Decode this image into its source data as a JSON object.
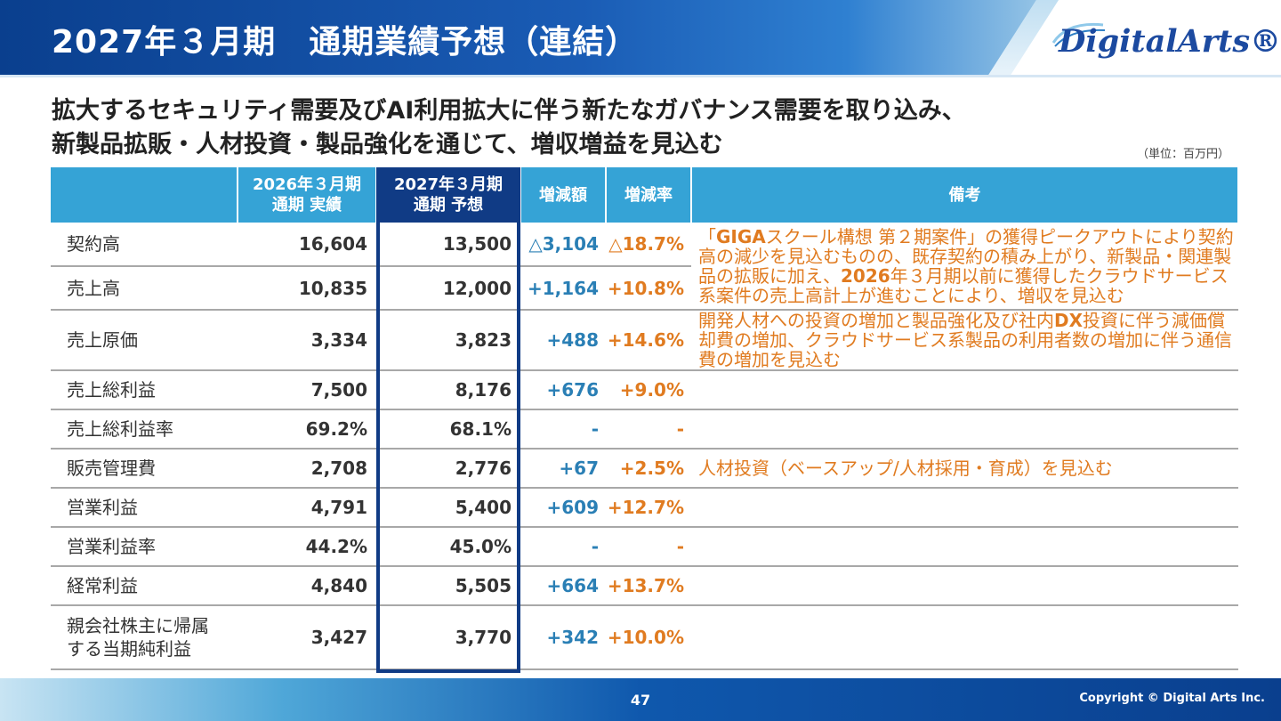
{
  "header": {
    "title": "2027年３月期　通期業績予想（連結）",
    "logo_text": "DigitalArts®"
  },
  "headline": {
    "line1": "拡大するセキュリティ需要及びAI利用拡大に伴う新たなガバナンス需要を取り込み、",
    "line2": "新製品拡販・人材投資・製品強化を通じて、増収増益を見込む"
  },
  "unit_note": "（単位：百万円）",
  "table": {
    "columns": {
      "prev_line1": "2026年３月期",
      "prev_line2": "通期 実績",
      "fc_line1": "2027年３月期",
      "fc_line2": "通期 予想",
      "change": "増減額",
      "rate": "増減率",
      "notes": "備考"
    },
    "rows": [
      {
        "label": "契約高",
        "prev": "16,604",
        "forecast": "13,500",
        "change": "△3,104",
        "rate": "△18.7%"
      },
      {
        "label": "売上高",
        "prev": "10,835",
        "forecast": "12,000",
        "change": "+1,164",
        "rate": "+10.8%"
      },
      {
        "label": "売上原価",
        "prev": "3,334",
        "forecast": "3,823",
        "change": "+488",
        "rate": "+14.6%"
      },
      {
        "label": "売上総利益",
        "prev": "7,500",
        "forecast": "8,176",
        "change": "+676",
        "rate": "+9.0%"
      },
      {
        "label": "売上総利益率",
        "prev": "69.2%",
        "forecast": "68.1%",
        "change": "-",
        "rate": "-"
      },
      {
        "label": "販売管理費",
        "prev": "2,708",
        "forecast": "2,776",
        "change": "+67",
        "rate": "+2.5%"
      },
      {
        "label": "営業利益",
        "prev": "4,791",
        "forecast": "5,400",
        "change": "+609",
        "rate": "+12.7%"
      },
      {
        "label": "営業利益率",
        "prev": "44.2%",
        "forecast": "45.0%",
        "change": "-",
        "rate": "-"
      },
      {
        "label": "経常利益",
        "prev": "4,840",
        "forecast": "5,505",
        "change": "+664",
        "rate": "+13.7%"
      },
      {
        "label_line1": "親会社株主に帰属",
        "label_line2": "する当期純利益",
        "prev": "3,427",
        "forecast": "3,770",
        "change": "+342",
        "rate": "+10.0%"
      }
    ],
    "notes": {
      "revenue_a": "「",
      "revenue_b": "GIGA",
      "revenue_c": "スクール構想 第２期案件」の獲得ピークアウトにより契約高の減少を見込むものの、既存契約の積み上がり、新製品・関連製品の拡販に加え、",
      "revenue_d": "2026",
      "revenue_e": "年３月期以前に獲得したクラウドサービス系案件の売上高計上が進むことにより、増収を見込む",
      "cost_a": "開発人材への投資の増加と製品強化及び社内",
      "cost_b": "DX",
      "cost_c": "投資に伴う減価償却費の増加、クラウドサービス系製品の利用者数の増加に伴う通信費の増加を見込む",
      "sga": "人材投資（ベースアップ/人材採用・育成）を見込む"
    }
  },
  "footer": {
    "page_number": "47",
    "copyright": "Copyright © Digital Arts Inc."
  },
  "colors": {
    "header_blue": "#0a3f8e",
    "table_header": "#35a3d6",
    "forecast_frame": "#103b85",
    "change_blue": "#2a7fb5",
    "rate_orange": "#e07b20"
  }
}
